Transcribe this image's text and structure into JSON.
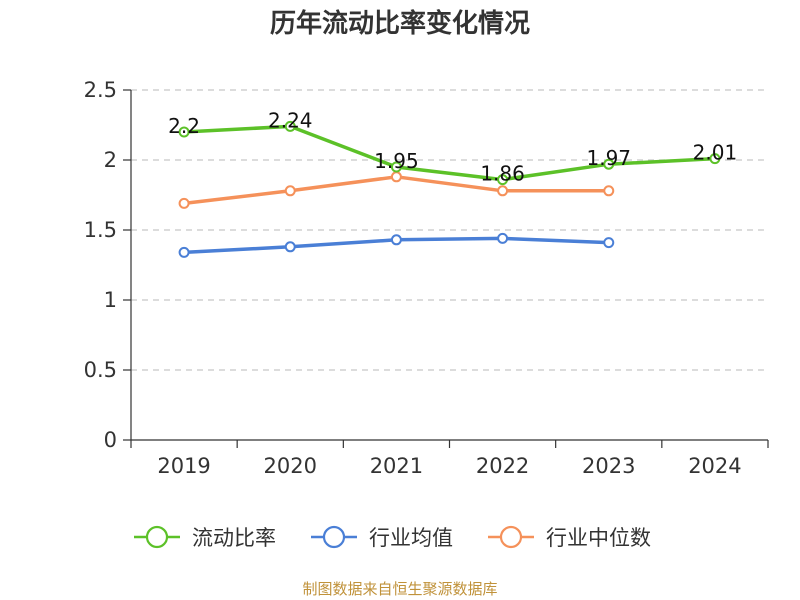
{
  "chart_data": {
    "type": "line",
    "title": "历年流动比率变化情况",
    "categories": [
      "2019",
      "2020",
      "2021",
      "2022",
      "2023",
      "2024"
    ],
    "ylim": [
      0,
      2.5
    ],
    "yticks": [
      "0",
      "0.5",
      "1",
      "1.5",
      "2",
      "2.5"
    ],
    "grid": true,
    "legend_position": "bottom",
    "series": [
      {
        "name": "流动比率",
        "color": "#5cc128",
        "values": [
          2.2,
          2.24,
          1.95,
          1.86,
          1.97,
          2.01
        ],
        "labels": [
          "2.2",
          "2.24",
          "1.95",
          "1.86",
          "1.97",
          "2.01"
        ]
      },
      {
        "name": "行业均值",
        "color": "#4a7fd6",
        "values": [
          1.34,
          1.38,
          1.43,
          1.44,
          1.41,
          null
        ]
      },
      {
        "name": "行业中位数",
        "color": "#f5915a",
        "values": [
          1.69,
          1.78,
          1.88,
          1.78,
          1.78,
          null
        ]
      }
    ]
  },
  "source": "制图数据来自恒生聚源数据库"
}
